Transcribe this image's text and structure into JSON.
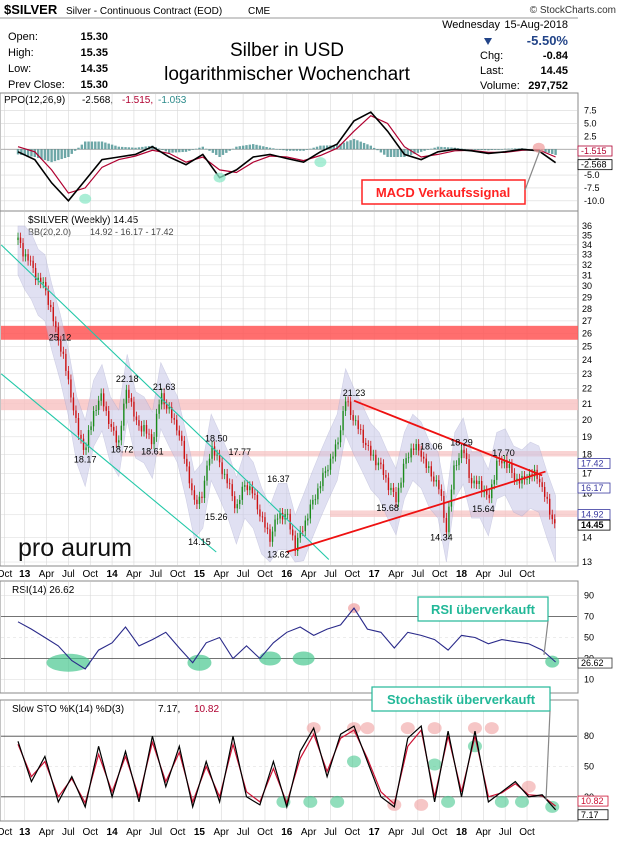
{
  "header": {
    "symbol": "$SILVER",
    "description": "Silver - Continuous Contract (EOD)",
    "exchange": "CME",
    "copyright": "© StockCharts.com",
    "date_label": "Wednesday",
    "date": "15-Aug-2018",
    "change_pct": "-5.50%",
    "quote_labels": {
      "open": "Open:",
      "high": "High:",
      "low": "Low:",
      "prev_close": "Prev Close:",
      "chg": "Chg:",
      "last": "Last:",
      "volume": "Volume:"
    },
    "quote_values": {
      "open": "15.30",
      "high": "15.35",
      "low": "14.35",
      "prev_close": "15.30",
      "chg": "-0.84",
      "last": "14.45",
      "volume": "297,752"
    },
    "title_line1": "Silber in USD",
    "title_line2": "logarithmischer Wochenchart",
    "logo_text": "pro aurum",
    "colors": {
      "up": "#1a8a1a",
      "down": "#cc1111",
      "accent_red": "#ff2222",
      "teal": "#22c8a8",
      "band": "#c8c8e8",
      "grid": "#d8d8d8"
    }
  },
  "chart_data": [
    {
      "type": "line",
      "panel": "ppo",
      "legend": [
        "PPO(12,26,9)",
        "-2.568,",
        "-1.515,",
        "-1.053"
      ],
      "ylim": [
        -11,
        8
      ],
      "yticks": [
        7.5,
        5.0,
        2.5,
        0.0,
        -2.5,
        -5.0,
        -7.5,
        -10.0
      ],
      "last_labels": [
        "-1.515",
        "-2.568"
      ],
      "x_weeks": [
        0,
        10,
        20,
        30,
        40,
        50,
        60,
        70,
        80,
        90,
        100,
        110,
        120,
        130,
        140,
        150,
        160,
        170,
        180,
        190,
        200,
        210,
        220,
        230,
        240,
        250,
        260,
        270,
        280,
        290,
        300,
        310,
        320
      ],
      "series": [
        {
          "role": "ppo",
          "values": [
            -0.5,
            -2.0,
            -6.5,
            -10.0,
            -6.0,
            -2.0,
            -1.5,
            -1.0,
            0.5,
            -1.5,
            -3.0,
            -1.0,
            -5.5,
            -4.0,
            -1.5,
            -1.0,
            -1.8,
            -2.5,
            -0.5,
            1.0,
            5.5,
            7.2,
            3.5,
            -1.0,
            -2.0,
            -0.5,
            0.0,
            -0.3,
            -0.8,
            -0.5,
            0.0,
            -0.3,
            -2.6
          ]
        },
        {
          "role": "signal",
          "values": [
            0.5,
            -0.5,
            -4.0,
            -8.5,
            -7.5,
            -3.5,
            -2.0,
            -1.3,
            -0.2,
            -0.8,
            -2.5,
            -1.5,
            -4.0,
            -4.5,
            -2.5,
            -1.3,
            -1.5,
            -2.2,
            -1.2,
            0.2,
            3.5,
            6.5,
            5.0,
            0.5,
            -1.5,
            -1.0,
            -0.3,
            -0.2,
            -0.6,
            -0.6,
            -0.2,
            -0.1,
            -1.5
          ]
        }
      ],
      "annotation": "MACD Verkaufssignal"
    },
    {
      "type": "line",
      "panel": "price",
      "scale": "log",
      "legend": "$SILVER (Weekly) 14.45",
      "bb_legend": [
        "BB(20,2.0)",
        "14.92 - 16.17 - 17.42"
      ],
      "ylim": [
        13,
        36
      ],
      "yticks": [
        36,
        35,
        34,
        33,
        32,
        31,
        30,
        29,
        28,
        27,
        26,
        25,
        24,
        23,
        22,
        21,
        20,
        19,
        18,
        17,
        16,
        15,
        14,
        13
      ],
      "right_labels": [
        "17.42",
        "16.17",
        "14.92",
        "14.45"
      ],
      "x_weeks": [
        0,
        4,
        8,
        12,
        16,
        20,
        25,
        30,
        35,
        40,
        45,
        50,
        55,
        60,
        65,
        70,
        75,
        80,
        85,
        90,
        95,
        100,
        105,
        110,
        115,
        120,
        125,
        130,
        135,
        140,
        145,
        150,
        155,
        160,
        165,
        170,
        175,
        180,
        185,
        190,
        195,
        200,
        205,
        210,
        215,
        220,
        225,
        230,
        235,
        240,
        245,
        250,
        255,
        260,
        265,
        270,
        275,
        280,
        285,
        290,
        295,
        300,
        305,
        310,
        315,
        320
      ],
      "close": [
        34.5,
        33.0,
        32.0,
        30.5,
        30.0,
        27.5,
        25.12,
        22.5,
        19.5,
        18.17,
        20.5,
        21.5,
        19.5,
        18.72,
        22.18,
        19.8,
        19.5,
        18.61,
        21.63,
        20.5,
        19.5,
        17.5,
        15.5,
        16.0,
        18.5,
        17.5,
        16.5,
        15.26,
        16.5,
        16.0,
        14.8,
        14.0,
        15.0,
        15.0,
        13.62,
        14.5,
        15.5,
        16.5,
        17.5,
        18.5,
        21.23,
        20.0,
        19.0,
        18.0,
        17.5,
        16.5,
        15.68,
        17.5,
        18.5,
        18.06,
        17.0,
        16.5,
        14.34,
        17.5,
        18.29,
        16.5,
        16.5,
        15.64,
        17.5,
        17.7,
        16.8,
        16.6,
        17.0,
        16.8,
        15.5,
        14.45
      ],
      "labels": [
        {
          "text": "25.12",
          "week": 25,
          "value": 25.12
        },
        {
          "text": "18.17",
          "week": 40,
          "value": 18.17
        },
        {
          "text": "22.18",
          "week": 65,
          "value": 22.18
        },
        {
          "text": "18.72",
          "week": 62,
          "value": 18.72
        },
        {
          "text": "18.61",
          "week": 80,
          "value": 18.61
        },
        {
          "text": "21.63",
          "week": 87,
          "value": 21.63
        },
        {
          "text": "18.50",
          "week": 118,
          "value": 18.5
        },
        {
          "text": "17.77",
          "week": 132,
          "value": 17.77
        },
        {
          "text": "15.26",
          "week": 118,
          "value": 15.26
        },
        {
          "text": "14.15",
          "week": 108,
          "value": 14.15
        },
        {
          "text": "16.37",
          "week": 155,
          "value": 16.37
        },
        {
          "text": "13.62",
          "week": 155,
          "value": 13.62
        },
        {
          "text": "21.23",
          "week": 200,
          "value": 21.23
        },
        {
          "text": "18.06",
          "week": 246,
          "value": 18.06
        },
        {
          "text": "18.29",
          "week": 264,
          "value": 18.29
        },
        {
          "text": "17.70",
          "week": 289,
          "value": 17.7
        },
        {
          "text": "15.68",
          "week": 220,
          "value": 15.68
        },
        {
          "text": "15.64",
          "week": 277,
          "value": 15.64
        },
        {
          "text": "14.34",
          "week": 252,
          "value": 14.34
        }
      ]
    },
    {
      "type": "line",
      "panel": "rsi",
      "legend": "RSI(14) 26.62",
      "ylim": [
        0,
        100
      ],
      "yticks": [
        90,
        70,
        50,
        30,
        10
      ],
      "last_label": "26.62",
      "x_weeks": [
        0,
        8,
        16,
        24,
        32,
        40,
        48,
        56,
        64,
        72,
        80,
        88,
        96,
        104,
        112,
        120,
        128,
        136,
        144,
        152,
        160,
        168,
        176,
        184,
        192,
        200,
        208,
        216,
        224,
        232,
        240,
        248,
        256,
        264,
        272,
        280,
        288,
        296,
        304,
        312,
        320
      ],
      "values": [
        65,
        58,
        50,
        42,
        28,
        20,
        38,
        45,
        60,
        42,
        48,
        55,
        40,
        26,
        45,
        50,
        30,
        42,
        30,
        45,
        55,
        60,
        52,
        58,
        62,
        78,
        58,
        55,
        40,
        55,
        52,
        48,
        38,
        52,
        50,
        44,
        48,
        46,
        44,
        38,
        26.62
      ],
      "annotation": "RSI überverkauft"
    },
    {
      "type": "line",
      "panel": "stochastic",
      "legend": [
        "Slow STO %K(14) %D(3)",
        "7.17,",
        "10.82"
      ],
      "ylim": [
        0,
        100
      ],
      "yticks": [
        80,
        50,
        20
      ],
      "last_labels": [
        "10.82",
        "7.17"
      ],
      "x_weeks": [
        0,
        8,
        16,
        24,
        32,
        40,
        48,
        56,
        64,
        72,
        80,
        88,
        96,
        104,
        112,
        120,
        128,
        136,
        144,
        152,
        160,
        168,
        176,
        184,
        192,
        200,
        208,
        216,
        224,
        232,
        240,
        248,
        256,
        264,
        272,
        280,
        288,
        296,
        304,
        312,
        320
      ],
      "series": [
        {
          "role": "k",
          "values": [
            75,
            35,
            60,
            15,
            40,
            10,
            70,
            20,
            65,
            15,
            80,
            30,
            70,
            10,
            55,
            15,
            80,
            20,
            12,
            55,
            10,
            65,
            88,
            40,
            82,
            90,
            55,
            20,
            10,
            78,
            90,
            15,
            85,
            20,
            85,
            15,
            25,
            35,
            20,
            22,
            7.17
          ]
        },
        {
          "role": "d",
          "values": [
            72,
            40,
            55,
            20,
            38,
            14,
            62,
            25,
            60,
            20,
            74,
            35,
            64,
            15,
            50,
            20,
            72,
            25,
            15,
            48,
            14,
            58,
            82,
            45,
            78,
            86,
            58,
            25,
            13,
            70,
            86,
            20,
            80,
            25,
            80,
            20,
            24,
            33,
            22,
            21,
            10.82
          ]
        }
      ],
      "annotation": "Stochastik überverkauft"
    }
  ],
  "x_axis": {
    "labels": [
      "Oct",
      "13",
      "Apr",
      "Jul",
      "Oct",
      "14",
      "Apr",
      "Jul",
      "Oct",
      "15",
      "Apr",
      "Jul",
      "Oct",
      "16",
      "Apr",
      "Jul",
      "Oct",
      "17",
      "Apr",
      "Jul",
      "Oct",
      "18",
      "Apr",
      "Jul",
      "Oct"
    ],
    "weeks": [
      -8,
      4,
      17,
      30,
      43,
      56,
      69,
      82,
      95,
      108,
      121,
      134,
      147,
      160,
      173,
      186,
      199,
      212,
      225,
      238,
      251,
      264,
      277,
      290,
      303
    ]
  }
}
